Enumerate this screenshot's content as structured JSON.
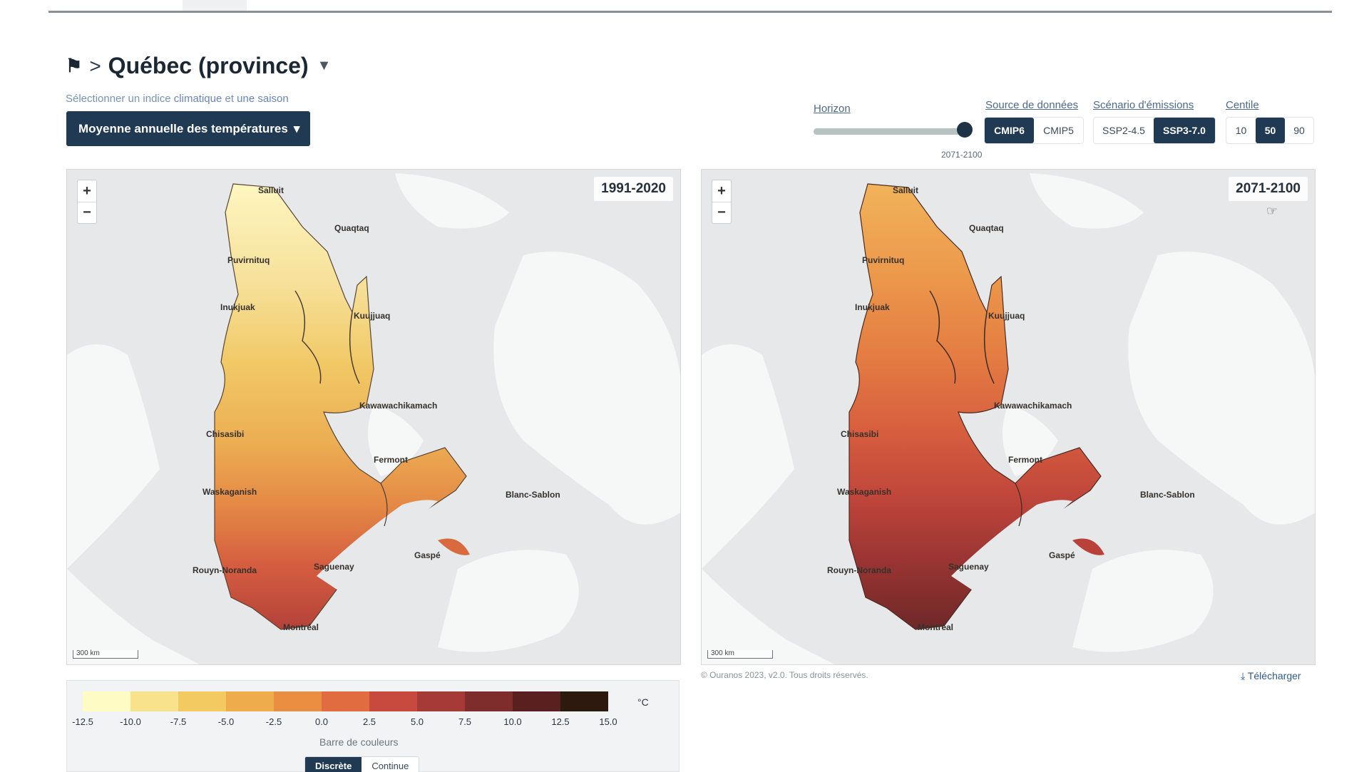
{
  "breadcrumb": {
    "sep": ">",
    "title": "Québec (province)"
  },
  "selector": {
    "hint_prefix": "Sélectionner un indice",
    "hint_word1": "climatique",
    "hint_mid": "et",
    "hint_word2": "une saison",
    "index_label": "Moyenne annuelle des températures"
  },
  "controls": {
    "horizon": {
      "label": "Horizon",
      "value": "2071-2100",
      "position_fraction": 1.0
    },
    "source": {
      "label": "Source de données",
      "options": [
        "CMIP6",
        "CMIP5"
      ],
      "selected": "CMIP6"
    },
    "scenario": {
      "label": "Scénario d'émissions",
      "options": [
        "SSP2-4.5",
        "SSP3-7.0"
      ],
      "selected": "SSP3-7.0"
    },
    "centile": {
      "label": "Centile",
      "options": [
        "10",
        "50",
        "90"
      ],
      "selected": "50"
    }
  },
  "maps": [
    {
      "period": "1991-2020",
      "scale": "300 km"
    },
    {
      "period": "2071-2100",
      "scale": "300 km"
    }
  ],
  "places": [
    "Salluit",
    "Quaqtaq",
    "Puvirnituq",
    "Inukjuak",
    "Kuujjuaq",
    "Kawawachikamach",
    "Chisasibi",
    "Fermont",
    "Waskaganish",
    "Blanc-Sablon",
    "Rouyn-Noranda",
    "Saguenay",
    "Gaspé",
    "Montréal"
  ],
  "footer": {
    "copyright": "© Ouranos 2023, v2.0. Tous droits réservés.",
    "download": "Télécharger"
  },
  "legend": {
    "unit": "°C",
    "ticks": [
      "-12.5",
      "-10.0",
      "-7.5",
      "-5.0",
      "-2.5",
      "0.0",
      "2.5",
      "5.0",
      "7.5",
      "10.0",
      "12.5",
      "15.0"
    ],
    "colors": [
      "#fefbc4",
      "#f8e38c",
      "#f3c961",
      "#efac4d",
      "#ea8e42",
      "#e06c3f",
      "#c84a3e",
      "#a63a37",
      "#7f2c2c",
      "#5a2020",
      "#2c1a0e"
    ],
    "bar_label": "Barre de couleurs",
    "modes": [
      "Discrète",
      "Continue"
    ],
    "selected_mode": "Discrète"
  },
  "colors": {
    "accent": "#213a54",
    "water": "#e6e8ea",
    "land_out": "#f6f7f7"
  }
}
